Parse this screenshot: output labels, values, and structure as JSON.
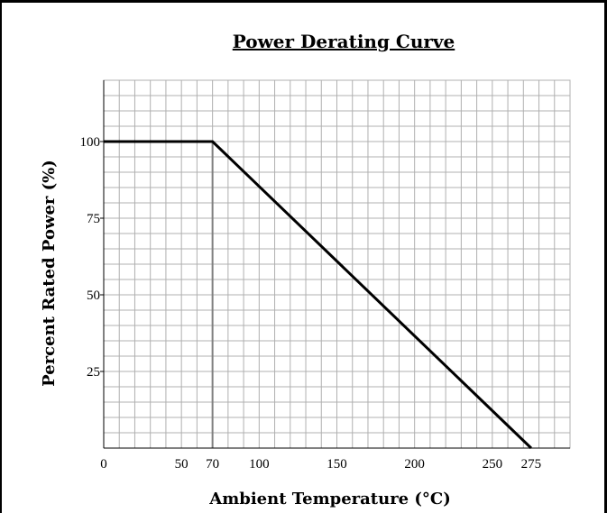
{
  "chart_data": {
    "type": "line",
    "title": "Power Derating Curve",
    "xlabel": "Ambient Temperature (°C)",
    "ylabel": "Percent Rated Power (%)",
    "xlim": [
      0,
      300
    ],
    "ylim": [
      0,
      120
    ],
    "x_ticks": [
      {
        "value": 0,
        "label": "0"
      },
      {
        "value": 50,
        "label": "50"
      },
      {
        "value": 70,
        "label": "70"
      },
      {
        "value": 100,
        "label": "100"
      },
      {
        "value": 150,
        "label": "150"
      },
      {
        "value": 200,
        "label": "200"
      },
      {
        "value": 250,
        "label": "250"
      },
      {
        "value": 275,
        "label": "275"
      }
    ],
    "y_ticks": [
      {
        "value": 100,
        "label": "100"
      },
      {
        "value": 75,
        "label": "75"
      },
      {
        "value": 50,
        "label": "50"
      },
      {
        "value": 25,
        "label": "25"
      }
    ],
    "grid": true,
    "grid_minor_step_x": 10,
    "grid_minor_step_y": 5,
    "series": [
      {
        "points": [
          [
            0,
            100
          ],
          [
            70,
            100
          ],
          [
            275,
            0
          ]
        ],
        "color": "#000000"
      }
    ],
    "reference_lines": [
      {
        "x": 70,
        "y_from": 0,
        "y_to": 100,
        "color": "#808080"
      }
    ],
    "colors": {
      "grid": "#b0b0b0",
      "axis": "#000000",
      "reference": "#808080",
      "curve": "#000000"
    }
  }
}
